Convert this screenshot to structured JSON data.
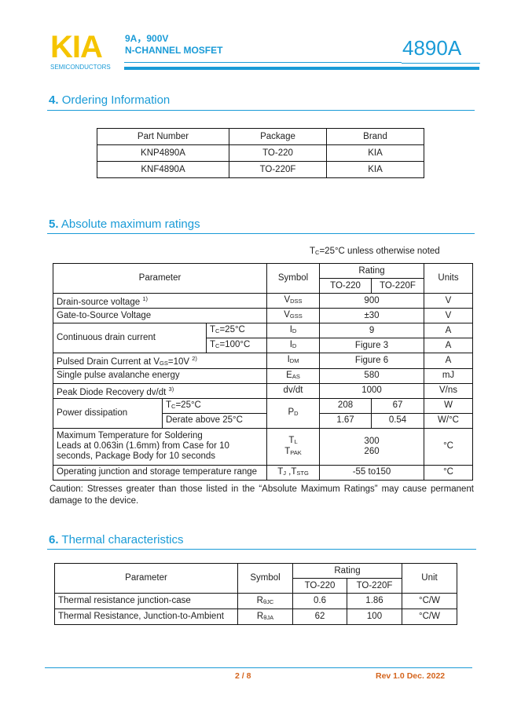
{
  "header": {
    "logo": "KIA",
    "logo_sub": "SEMICONDUCTORS",
    "spec1": "9A，900V",
    "spec2": "N-CHANNEL MOSFET",
    "part": "4890A",
    "brand_color": "#1a9bd7",
    "logo_color": "#f5c400"
  },
  "s4": {
    "num": "4.",
    "title": "Ordering Information",
    "head": [
      "Part Number",
      "Package",
      "Brand"
    ],
    "rows": [
      [
        "KNP4890A",
        "TO-220",
        "KIA"
      ],
      [
        "KNF4890A",
        "TO-220F",
        "KIA"
      ]
    ]
  },
  "s5": {
    "num": "5.",
    "title": "Absolute maximum ratings",
    "cond_pre": "T",
    "cond_sub": "C",
    "cond_post": "=25°C unless otherwise noted",
    "head": {
      "param": "Parameter",
      "symbol": "Symbol",
      "rating": "Rating",
      "p1": "TO-220",
      "p2": "TO-220F",
      "units": "Units"
    },
    "r1": {
      "p": "Drain-source voltage ",
      "sup": "1)",
      "s": "V",
      "ss": "DSS",
      "v": "900",
      "u": "V"
    },
    "r2": {
      "p": "Gate-to-Source Voltage",
      "s": "V",
      "ss": "GSS",
      "v": "±30",
      "u": "V"
    },
    "r3": {
      "p": "Continuous drain current",
      "c1": "=25°C",
      "c2": "=100°C",
      "cp": "T",
      "cs": "C",
      "s": "I",
      "ss": "D",
      "v1": "9",
      "v2": "Figure 3",
      "u": "A"
    },
    "r4": {
      "p": "Pulsed Drain Current at V",
      "ps": "GS",
      "p2": "=10V ",
      "sup": "2)",
      "s": "I",
      "ss": "DM",
      "v": "Figure 6",
      "u": "A"
    },
    "r5": {
      "p": "Single pulse avalanche energy",
      "s": "E",
      "ss": "AS",
      "v": "580",
      "u": "mJ"
    },
    "r6": {
      "p": "Peak Diode Recovery dv/dt ",
      "sup": "3)",
      "s": "dv/dt",
      "v": "1000",
      "u": "V/ns"
    },
    "r7": {
      "p": "Power dissipation",
      "c1": "=25°C",
      "c2": "Derate above 25°C",
      "s": "P",
      "ss": "D",
      "a1": "208",
      "b1": "67",
      "u1": "W",
      "a2": "1.67",
      "b2": "0.54",
      "u2": "W/°C"
    },
    "r8": {
      "p1": "Maximum Temperature for Soldering",
      "p2": "Leads at 0.063in (1.6mm) from Case for 10",
      "p3": "seconds, Package Body for 10 seconds",
      "s1": "T",
      "ss1": "L",
      "s2": "T",
      "ss2": "PAK",
      "v1": "300",
      "v2": "260",
      "u": "°C"
    },
    "r9": {
      "p": "Operating junction and storage temperature range",
      "s1": "T",
      "ss1": "J",
      "s2": " ,T",
      "ss2": "STG",
      "v": "-55 to150",
      "u": "°C"
    },
    "caution": "Caution: Stresses greater than those listed in the “Absolute Maximum Ratings” may cause permanent damage to the device."
  },
  "s6": {
    "num": "6.",
    "title": "Thermal characteristics",
    "head": {
      "param": "Parameter",
      "symbol": "Symbol",
      "rating": "Rating",
      "p1": "TO-220",
      "p2": "TO-220F",
      "unit": "Unit"
    },
    "rows": [
      {
        "p": "Thermal resistance junction-case",
        "s": "R",
        "ss": "θJC",
        "a": "0.6",
        "b": "1.86",
        "u": "°C/W"
      },
      {
        "p": "Thermal Resistance, Junction-to-Ambient",
        "s": "R",
        "ss": "θJA",
        "a": "62",
        "b": "100",
        "u": "°C/W"
      }
    ]
  },
  "footer": {
    "page": "2 / 8",
    "rev": "Rev 1.0 Dec. 2022"
  }
}
